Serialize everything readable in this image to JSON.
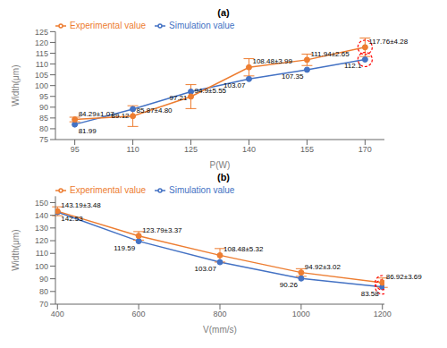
{
  "chart_data": [
    {
      "type": "line",
      "title": "(a)",
      "xlabel": "P(W)",
      "ylabel": "Width(μm)",
      "x": [
        95,
        110,
        125,
        140,
        155,
        170
      ],
      "series": [
        {
          "name": "Simulation value",
          "color": "#4472C4",
          "marker": "circle",
          "values": [
            81.99,
            89.12,
            97.21,
            103.07,
            107.35,
            112.1
          ]
        },
        {
          "name": "Experimental value",
          "color": "#ED7D31",
          "marker": "circle",
          "values": [
            84.29,
            85.87,
            94.9,
            108.48,
            111.94,
            117.76
          ],
          "errors": [
            1.07,
            4.8,
            5.55,
            3.99,
            2.65,
            4.28
          ],
          "value_labels": [
            "84.29±1.07",
            "85.87±4.80",
            "94.9±5.55",
            "108.48±3.99",
            "111.94±2.65",
            "117.76±4.28"
          ]
        }
      ],
      "xlim": [
        90,
        175
      ],
      "ylim": [
        75,
        125
      ],
      "xticks": [
        95,
        110,
        125,
        140,
        155,
        170
      ],
      "yticks": [
        75,
        80,
        85,
        90,
        95,
        100,
        105,
        110,
        115,
        120,
        125
      ],
      "legend": "upper left",
      "grid": false,
      "data_labels": true,
      "highlight_index": 5,
      "highlight_color": "red"
    },
    {
      "type": "line",
      "title": "(b)",
      "xlabel": "V(mm/s)",
      "ylabel": "Width(μm)",
      "x": [
        400,
        600,
        800,
        1000,
        1200
      ],
      "series": [
        {
          "name": "Simulation value",
          "color": "#4472C4",
          "marker": "circle",
          "values": [
            142.53,
            119.59,
            103.07,
            90.26,
            83.58
          ]
        },
        {
          "name": "Experimental value",
          "color": "#ED7D31",
          "marker": "circle",
          "values": [
            143.19,
            123.79,
            108.48,
            94.92,
            86.92
          ],
          "errors": [
            3.48,
            3.37,
            5.32,
            3.02,
            3.69
          ],
          "value_labels": [
            "143.19±3.48",
            "123.79±3.37",
            "108.48±5.32",
            "94.92±3.02",
            "86.92±3.69"
          ]
        }
      ],
      "xlim": [
        395,
        1205
      ],
      "ylim": [
        70,
        155
      ],
      "xticks": [
        400,
        600,
        800,
        1000,
        1200
      ],
      "yticks": [
        70,
        80,
        90,
        100,
        110,
        120,
        130,
        140,
        150
      ],
      "legend": "upper left",
      "grid": false,
      "data_labels": true,
      "highlight_index": 4,
      "highlight_color": "red"
    }
  ]
}
